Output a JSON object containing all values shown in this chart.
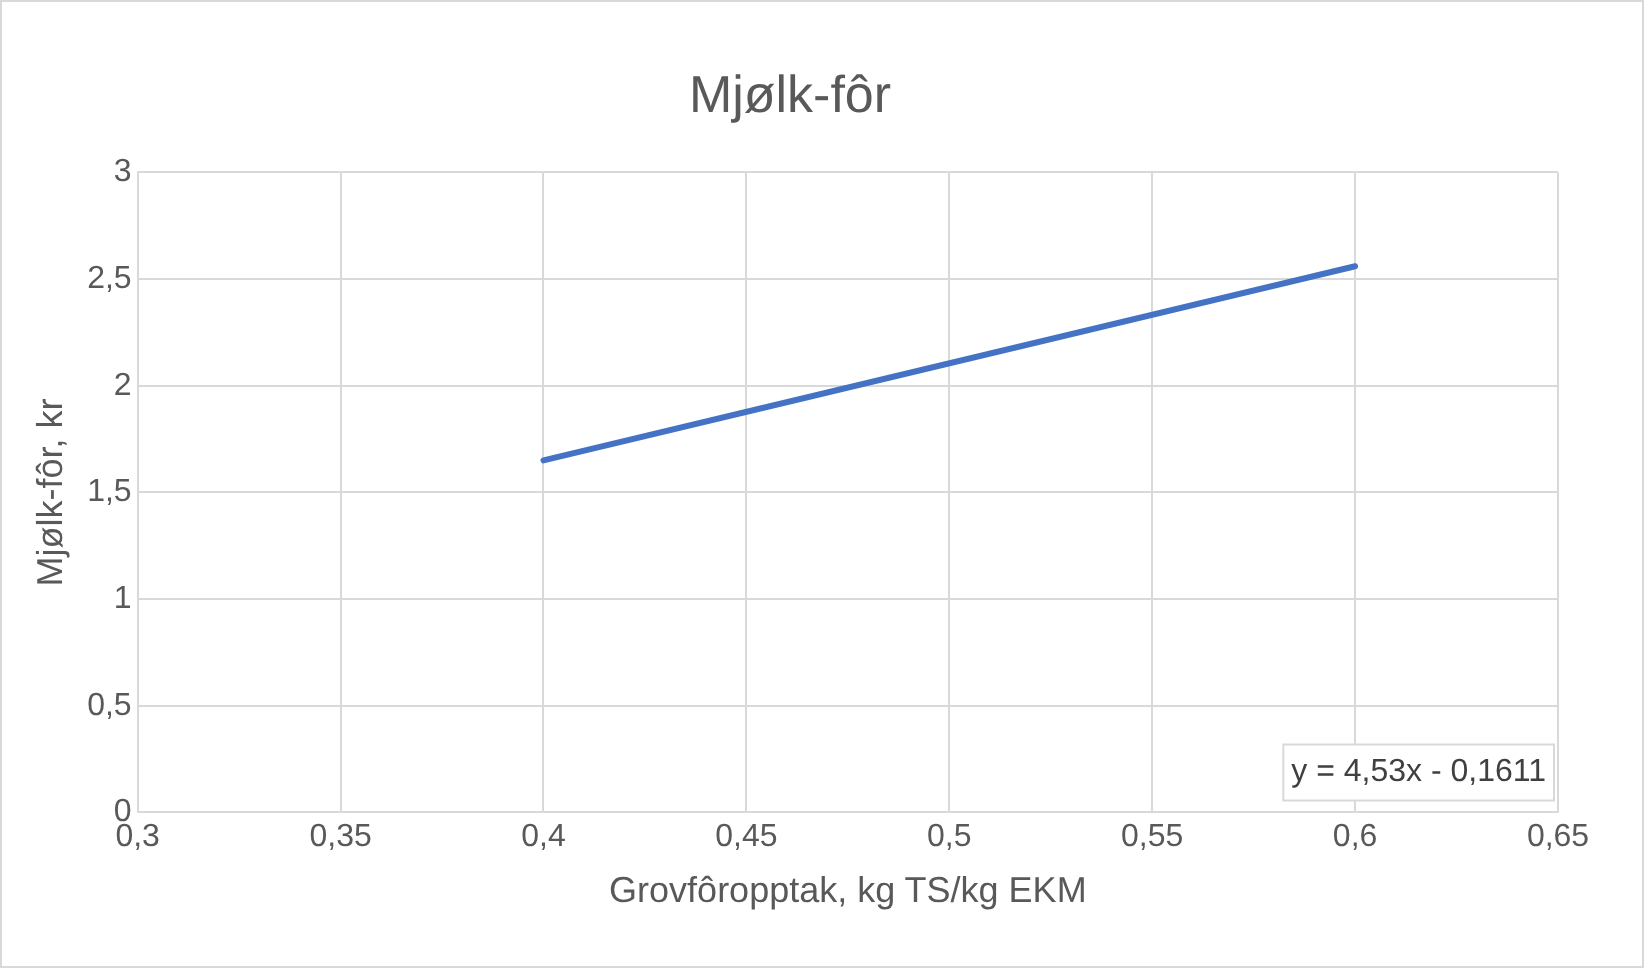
{
  "chart_data": {
    "type": "line",
    "title": "Mjølk-fôr",
    "xlabel": "Grovfôropptak, kg TS/kg EKM",
    "ylabel": "Mjølk-fôr, kr",
    "x": [
      0.4,
      0.6
    ],
    "values": [
      1.65,
      2.56
    ],
    "color": "#4472c4",
    "xlim": [
      0.3,
      0.65
    ],
    "xticks": [
      {
        "value": 0.3,
        "label": "0,3"
      },
      {
        "value": 0.35,
        "label": "0,35"
      },
      {
        "value": 0.4,
        "label": "0,4"
      },
      {
        "value": 0.45,
        "label": "0,45"
      },
      {
        "value": 0.5,
        "label": "0,5"
      },
      {
        "value": 0.55,
        "label": "0,55"
      },
      {
        "value": 0.6,
        "label": "0,6"
      },
      {
        "value": 0.65,
        "label": "0,65"
      }
    ],
    "ylim": [
      0,
      3
    ],
    "yticks": [
      0,
      {
        "value": 0.5,
        "label": "0,5"
      },
      1,
      {
        "value": 1.5,
        "label": "1,5"
      },
      2,
      {
        "value": 2.5,
        "label": "2,5"
      },
      3
    ],
    "grid": true,
    "legend": false,
    "marker": "none",
    "line_style": "solid",
    "annotations": [
      "y = 4,53x - 0,1611"
    ]
  }
}
